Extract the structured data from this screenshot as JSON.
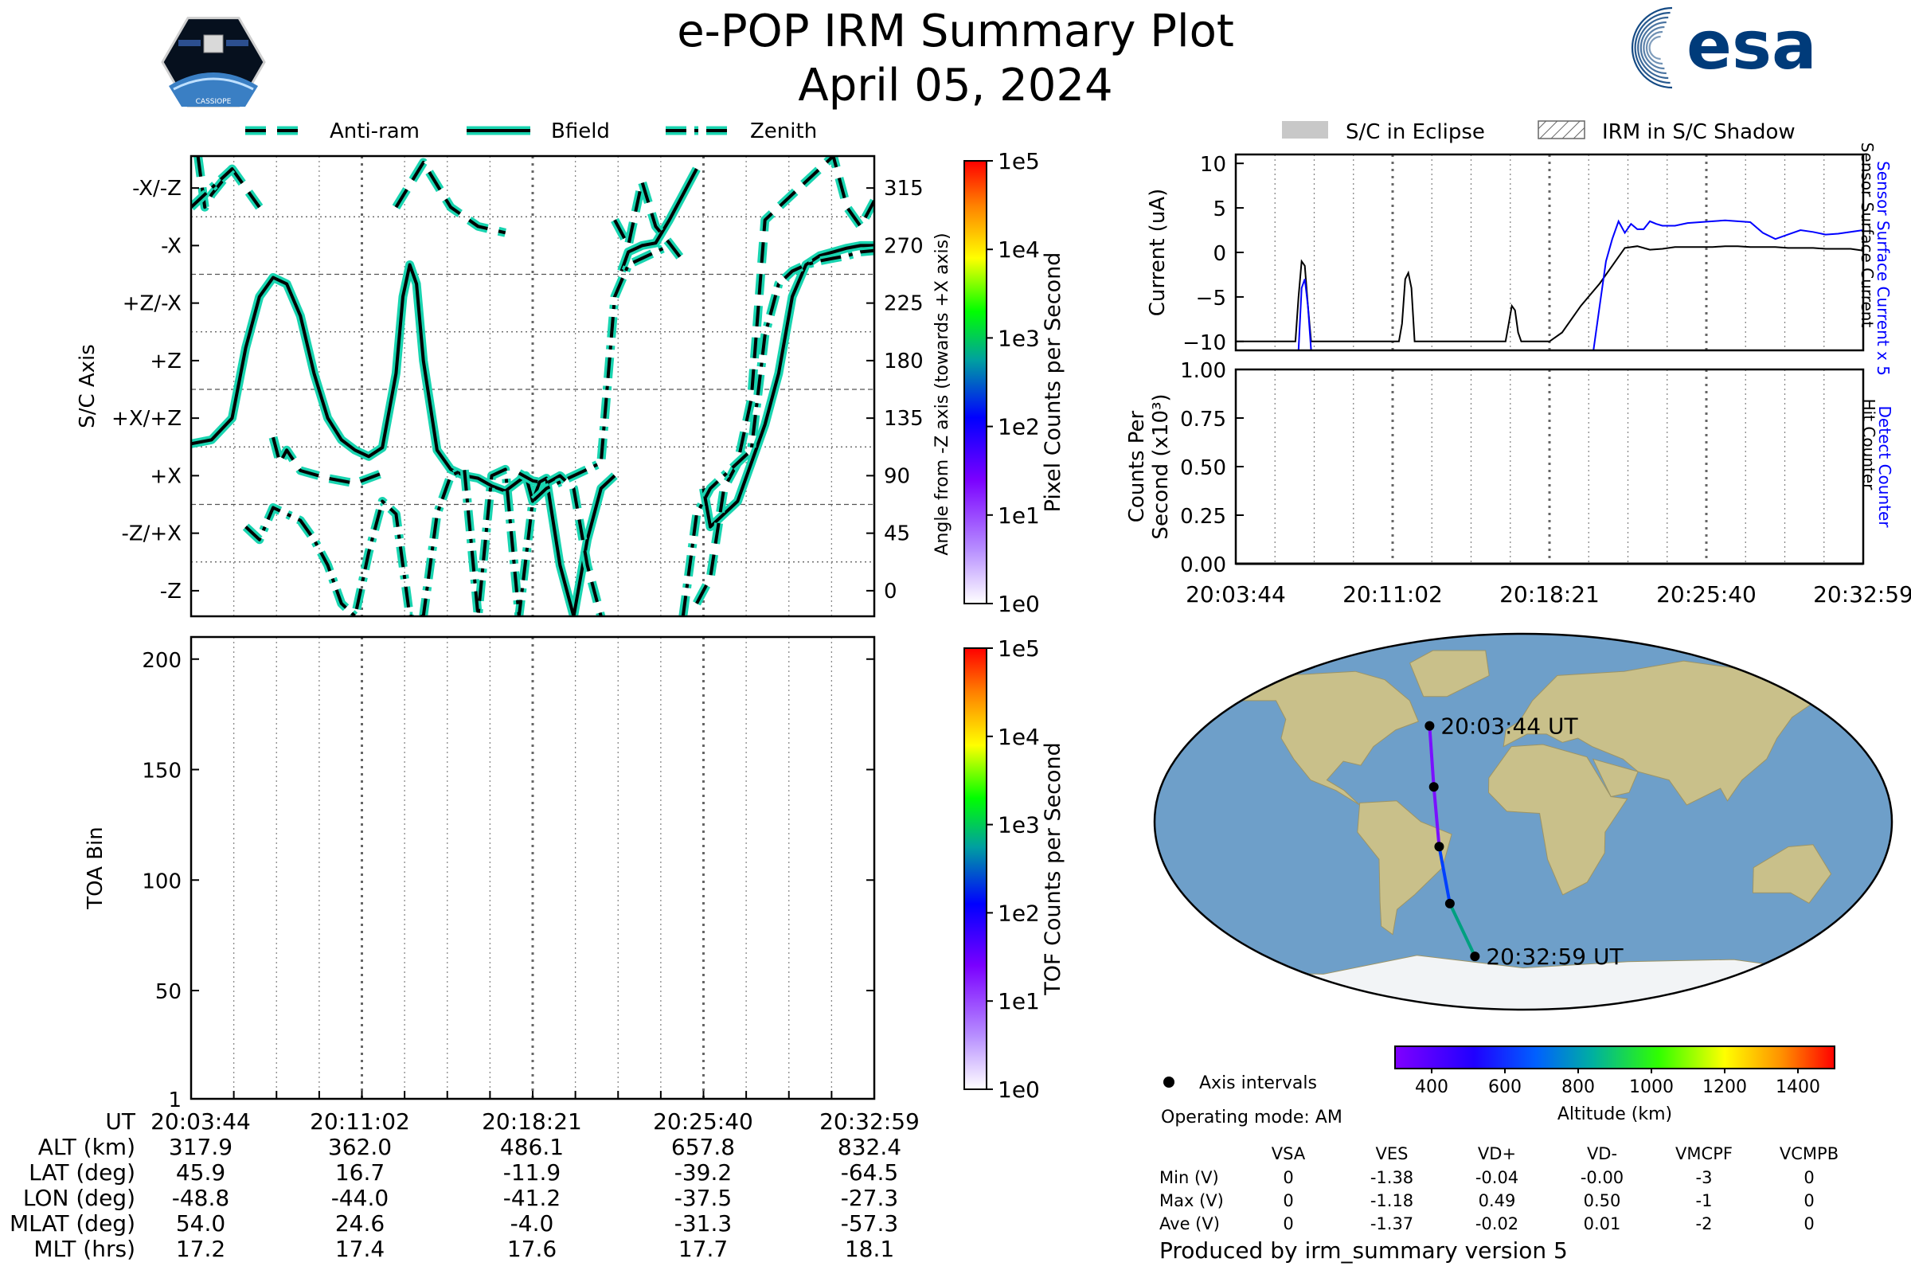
{
  "header": {
    "title": "e-POP IRM Summary Plot",
    "date": "April 05, 2024",
    "mission_logo_text": "CASSIOPE",
    "agency_logo_text": "esa"
  },
  "colors": {
    "bfield": "#000000",
    "halo": "#19d4b0",
    "ssc": "#0000ff",
    "eclipse": "#c8c8c8",
    "ocean": "#6e9fc9",
    "land": "#c9c08a"
  },
  "chart_data": [
    {
      "type": "line",
      "panel": "attitude",
      "ylabel": "S/C Axis",
      "y2label": "Angle from -Z axis (towards +X axis)",
      "legend": [
        "Anti-ram",
        "Bfield",
        "Zenith"
      ],
      "legend_placement": "top",
      "ylim": [
        -20,
        340
      ],
      "y_tick_labels": [
        {
          "v": 315,
          "axis": "-X/-Z"
        },
        {
          "v": 270,
          "axis": "-X"
        },
        {
          "v": 225,
          "axis": "+Z/-X"
        },
        {
          "v": 180,
          "axis": "+Z"
        },
        {
          "v": 135,
          "axis": "+X/+Z"
        },
        {
          "v": 90,
          "axis": "+X"
        },
        {
          "v": 45,
          "axis": "-Z/+X"
        },
        {
          "v": 0,
          "axis": "-Z"
        }
      ],
      "colorbar": {
        "label": "Pixel Counts per Second",
        "ticks": [
          "1e0",
          "1e1",
          "1e2",
          "1e3",
          "1e4",
          "1e5"
        ]
      },
      "series": [
        {
          "name": "Bfield",
          "style": "solid",
          "x": [
            0,
            3,
            6,
            8,
            10,
            12,
            14,
            16,
            18,
            20,
            22,
            24,
            26,
            28,
            30,
            31,
            32,
            33,
            34,
            36,
            38,
            40,
            42,
            44,
            46,
            48,
            49,
            50,
            51,
            52,
            54,
            56,
            58,
            60,
            62,
            63,
            64,
            66,
            68,
            70,
            72,
            74,
            75,
            76,
            78,
            80,
            82,
            84,
            86,
            88,
            90,
            92,
            94,
            96,
            98,
            100
          ],
          "y": [
            115,
            118,
            135,
            190,
            230,
            245,
            240,
            215,
            170,
            135,
            118,
            110,
            105,
            112,
            170,
            230,
            255,
            240,
            180,
            110,
            95,
            90,
            88,
            82,
            78,
            86,
            90,
            70,
            85,
            88,
            20,
            -20,
            40,
            80,
            90,
            250,
            265,
            270,
            272,
            290,
            310,
            330,
            80,
            50,
            60,
            70,
            100,
            130,
            170,
            230,
            255,
            262,
            265,
            268,
            270,
            270
          ]
        },
        {
          "name": "Anti-ram",
          "style": "dashed",
          "x": [
            0,
            1,
            2,
            3,
            6,
            10,
            12,
            13,
            14,
            16,
            20,
            24,
            28,
            30,
            34,
            38,
            42,
            46,
            48,
            50,
            52,
            54,
            56,
            58,
            60,
            62,
            64,
            66,
            68,
            70,
            72,
            74,
            76,
            78,
            80,
            82,
            84,
            86,
            88,
            90,
            92,
            94,
            96,
            98,
            100
          ],
          "y": [
            -20,
            340,
            300,
            310,
            330,
            300,
            120,
            100,
            110,
            94,
            88,
            84,
            92,
            300,
            335,
            300,
            285,
            280,
            92,
            86,
            84,
            90,
            80,
            20,
            -20,
            290,
            270,
            320,
            285,
            272,
            258,
            -10,
            10,
            80,
            100,
            150,
            290,
            300,
            310,
            320,
            330,
            340,
            300,
            285,
            305
          ],
          "note": "multi-valued wrapped trace, approximate"
        },
        {
          "name": "Zenith",
          "style": "dashdot",
          "x": [
            0,
            2,
            4,
            6,
            8,
            10,
            12,
            14,
            16,
            18,
            20,
            22,
            24,
            26,
            28,
            30,
            32,
            34,
            36,
            38,
            40,
            42,
            44,
            46,
            48,
            50,
            52,
            54,
            56,
            58,
            60,
            62,
            64,
            66,
            68,
            70,
            72,
            74,
            76,
            78,
            80,
            82,
            84,
            86,
            88,
            90,
            92,
            94,
            96,
            98,
            100
          ],
          "y": [
            300,
            310,
            320,
            330,
            50,
            40,
            65,
            60,
            55,
            40,
            20,
            -10,
            -20,
            30,
            70,
            60,
            -20,
            -20,
            60,
            90,
            95,
            -20,
            90,
            95,
            -20,
            70,
            80,
            85,
            90,
            95,
            100,
            230,
            255,
            260,
            265,
            270,
            -20,
            60,
            80,
            90,
            100,
            110,
            200,
            240,
            250,
            255,
            258,
            260,
            262,
            265,
            266
          ],
          "note": "multi-valued wrapped trace, approximate"
        }
      ]
    },
    {
      "type": "heatmap",
      "panel": "toa",
      "ylabel": "TOA Bin",
      "ylim": [
        1,
        210
      ],
      "y_ticks": [
        1,
        50,
        100,
        150,
        200
      ],
      "colorbar": {
        "label": "TOF Counts per Second",
        "ticks": [
          "1e0",
          "1e1",
          "1e2",
          "1e3",
          "1e4",
          "1e5"
        ]
      },
      "values": []
    },
    {
      "type": "line",
      "panel": "current",
      "ylabel": "Current (uA)",
      "right_labels": [
        "Sensor Surface Current x 5",
        "Sensor Surface Current"
      ],
      "legend": [
        "S/C in Eclipse",
        "IRM in S/C Shadow"
      ],
      "legend_placement": "top",
      "ylim": [
        -11,
        11
      ],
      "y_ticks": [
        10,
        5,
        0,
        -5,
        -10
      ],
      "series": [
        {
          "name": "Sensor Surface Current",
          "color": "#000000",
          "x": [
            0,
            9.5,
            10,
            10.5,
            11,
            11.5,
            12,
            12.5,
            13,
            26,
            26.5,
            27,
            27.5,
            28,
            28.5,
            29,
            43,
            43.5,
            44,
            44.5,
            45,
            45.5,
            50,
            52,
            55,
            58,
            60,
            61,
            62,
            64,
            66,
            68,
            70,
            72,
            74,
            76,
            78,
            80,
            82,
            84,
            86,
            88,
            90,
            92,
            94,
            96,
            98,
            100
          ],
          "y": [
            -10,
            -10,
            -5,
            -1,
            -1.5,
            -6,
            -10,
            -10,
            -10,
            -10,
            -8,
            -3,
            -2.3,
            -4,
            -10,
            -10,
            -10,
            -8,
            -6,
            -6.5,
            -9,
            -10,
            -10,
            -9,
            -6,
            -3.5,
            -1.5,
            -0.5,
            0.5,
            0.7,
            0.3,
            0.4,
            0.6,
            0.6,
            0.6,
            0.6,
            0.7,
            0.7,
            0.6,
            0.6,
            0.6,
            0.5,
            0.5,
            0.5,
            0.4,
            0.4,
            0.4,
            0.2
          ]
        },
        {
          "name": "Sensor Surface Current x 5",
          "color": "#0000ff",
          "x": [
            10,
            10.5,
            11,
            11.5,
            12,
            57,
            58,
            59,
            60,
            61,
            62,
            63,
            64,
            65,
            66,
            67,
            68,
            70,
            72,
            74,
            76,
            78,
            80,
            82,
            84,
            86,
            88,
            90,
            92,
            94,
            96,
            98,
            100
          ],
          "y": [
            -11,
            -4,
            -3,
            -6,
            -11,
            -11,
            -6,
            -1,
            1.5,
            3.5,
            2.2,
            3.2,
            2.6,
            2.6,
            3.5,
            3.2,
            3.0,
            3.0,
            3.3,
            3.4,
            3.5,
            3.6,
            3.5,
            3.4,
            2.2,
            1.5,
            2.0,
            2.5,
            2.3,
            2.0,
            2.1,
            2.3,
            2.5
          ]
        }
      ]
    },
    {
      "type": "line",
      "panel": "counts",
      "ylabel": "Counts Per Second (x10³)",
      "right_labels": [
        "Detect Counter",
        "Hit Counter"
      ],
      "ylim": [
        0,
        1
      ],
      "y_ticks": [
        "0.00",
        "0.25",
        "0.50",
        "0.75",
        "1.00"
      ],
      "series": [
        {
          "name": "Detect Counter",
          "color": "#0000ff",
          "x": [
            0,
            100
          ],
          "y": [
            0,
            0
          ]
        },
        {
          "name": "Hit Counter",
          "color": "#000000",
          "x": [
            0,
            100
          ],
          "y": [
            0,
            0
          ]
        }
      ]
    },
    {
      "type": "scatter",
      "panel": "map",
      "start_label": "20:03:44 UT",
      "end_label": "20:32:59 UT",
      "legend": "Axis intervals",
      "colorbar": {
        "label": "Altitude (km)",
        "ticks": [
          400,
          600,
          800,
          1000,
          1200,
          1400
        ],
        "range": [
          300,
          1500
        ]
      },
      "track": [
        {
          "lon": -48.8,
          "lat": 45.9,
          "alt": 317.9
        },
        {
          "lon": -44.0,
          "lat": 16.7,
          "alt": 362.0
        },
        {
          "lon": -41.2,
          "lat": -11.9,
          "alt": 486.1
        },
        {
          "lon": -37.5,
          "lat": -39.2,
          "alt": 657.8
        },
        {
          "lon": -27.3,
          "lat": -64.5,
          "alt": 832.4
        }
      ]
    }
  ],
  "time_axis": {
    "ticks": [
      "20:03:44",
      "20:11:02",
      "20:18:21",
      "20:25:40",
      "20:32:59"
    ]
  },
  "ephemeris": {
    "row_labels": [
      "UT",
      "ALT (km)",
      "LAT (deg)",
      "LON (deg)",
      "MLAT (deg)",
      "MLT (hrs)"
    ],
    "columns": [
      [
        "20:03:44",
        "317.9",
        "45.9",
        "-48.8",
        "54.0",
        "17.2"
      ],
      [
        "20:11:02",
        "362.0",
        "16.7",
        "-44.0",
        "24.6",
        "17.4"
      ],
      [
        "20:18:21",
        "486.1",
        "-11.9",
        "-41.2",
        "-4.0",
        "17.6"
      ],
      [
        "20:25:40",
        "657.8",
        "-39.2",
        "-37.5",
        "-31.3",
        "17.7"
      ],
      [
        "20:32:59",
        "832.4",
        "-64.5",
        "-27.3",
        "-57.3",
        "18.1"
      ]
    ]
  },
  "info": {
    "operating_mode": "Operating mode: AM",
    "produced_by": "Produced by irm_summary version 5"
  },
  "voltages": {
    "headers": [
      "VSA",
      "VES",
      "VD+",
      "VD-",
      "VMCPF",
      "VCMPB"
    ],
    "rows": [
      {
        "label": "Min (V)",
        "values": [
          "0",
          "-1.38",
          "-0.04",
          "-0.00",
          "-3",
          "0"
        ]
      },
      {
        "label": "Max (V)",
        "values": [
          "0",
          "-1.18",
          "0.49",
          "0.50",
          "-1",
          "0"
        ]
      },
      {
        "label": "Ave (V)",
        "values": [
          "0",
          "-1.37",
          "-0.02",
          "0.01",
          "-2",
          "0"
        ]
      }
    ]
  }
}
